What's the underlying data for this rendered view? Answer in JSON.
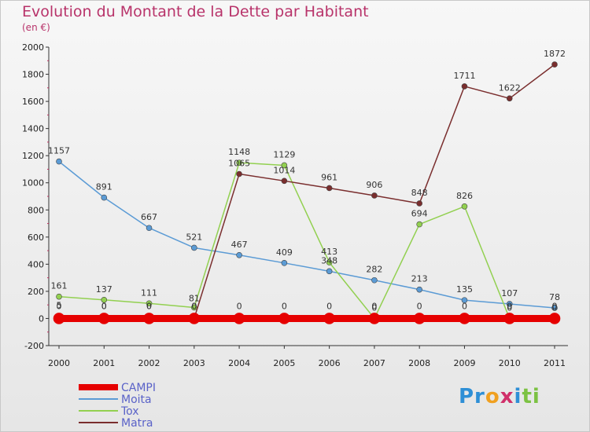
{
  "chart_data": {
    "type": "line",
    "title": "Evolution du Montant de la Dette par Habitant",
    "subtitle": "(en €)",
    "x": [
      "2000",
      "2001",
      "2002",
      "2003",
      "2004",
      "2005",
      "2006",
      "2007",
      "2008",
      "2009",
      "2010",
      "2011"
    ],
    "ylim": [
      -200,
      2000
    ],
    "yticks": [
      -200,
      0,
      200,
      400,
      600,
      800,
      1000,
      1200,
      1400,
      1600,
      1800,
      2000
    ],
    "grid": false,
    "legend_placement": "bottom-left",
    "series": [
      {
        "name": "CAMPI",
        "color": "#e60000",
        "values": [
          0,
          0,
          0,
          0,
          0,
          0,
          0,
          0,
          0,
          0,
          0,
          0
        ]
      },
      {
        "name": "Moita",
        "color": "#5b9bd5",
        "values": [
          1157,
          891,
          667,
          521,
          467,
          409,
          348,
          282,
          213,
          135,
          107,
          78
        ]
      },
      {
        "name": "Tox",
        "color": "#92d050",
        "values": [
          161,
          137,
          111,
          81,
          1148,
          1129,
          413,
          0,
          694,
          826,
          0,
          0
        ]
      },
      {
        "name": "Matra",
        "color": "#7a2e2e",
        "values": [
          5,
          0,
          0,
          0,
          1065,
          1014,
          961,
          906,
          848,
          1711,
          1622,
          1872
        ]
      }
    ]
  },
  "logo": {
    "parts": [
      "Pr",
      "o",
      "x",
      "i",
      "ti"
    ]
  }
}
